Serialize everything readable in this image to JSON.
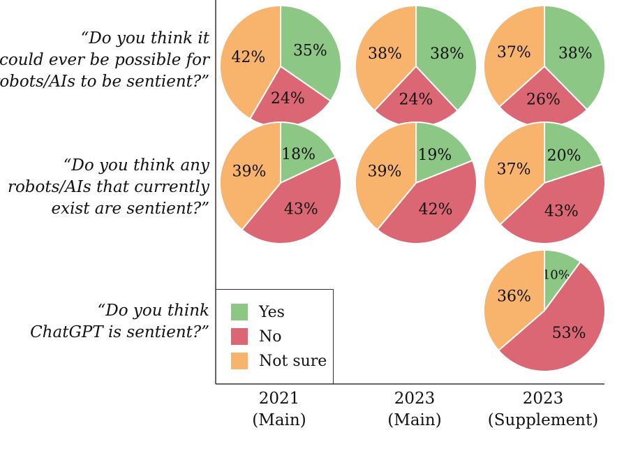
{
  "questions": [
    {
      "lines": [
        "“Do you think it",
        "could ever be possible for",
        "robots/AIs to be sentient?”"
      ]
    },
    {
      "lines": [
        "“Do you think any",
        "robots/AIs that currently",
        "exist are sentient?”"
      ]
    },
    {
      "lines": [
        "“Do you think",
        "ChatGPT is sentient?”"
      ]
    }
  ],
  "columns": [
    {
      "year": "2021",
      "sub": "(Main)"
    },
    {
      "year": "2023",
      "sub": "(Main)"
    },
    {
      "year": "2023",
      "sub": "(Supplement)"
    }
  ],
  "legend": [
    {
      "label": "Yes",
      "color": "#8cc786"
    },
    {
      "label": "No",
      "color": "#db6774"
    },
    {
      "label": "Not sure",
      "color": "#f8b36c"
    }
  ],
  "chart_data": {
    "type": "pie",
    "series_names": [
      "Yes",
      "No",
      "Not sure"
    ],
    "colors": {
      "Yes": "#8cc786",
      "No": "#db6774",
      "Not sure": "#f8b36c"
    },
    "pies": [
      {
        "row": 0,
        "col": 0,
        "values": {
          "Yes": 35,
          "No": 24,
          "Not sure": 42
        },
        "labels": [
          "35%",
          "24%",
          "42%"
        ]
      },
      {
        "row": 0,
        "col": 1,
        "values": {
          "Yes": 38,
          "No": 24,
          "Not sure": 38
        },
        "labels": [
          "38%",
          "24%",
          "38%"
        ]
      },
      {
        "row": 0,
        "col": 2,
        "values": {
          "Yes": 38,
          "No": 26,
          "Not sure": 37
        },
        "labels": [
          "38%",
          "26%",
          "37%"
        ]
      },
      {
        "row": 1,
        "col": 0,
        "values": {
          "Yes": 18,
          "No": 43,
          "Not sure": 39
        },
        "labels": [
          "18%",
          "43%",
          "39%"
        ]
      },
      {
        "row": 1,
        "col": 1,
        "values": {
          "Yes": 19,
          "No": 42,
          "Not sure": 39
        },
        "labels": [
          "19%",
          "42%",
          "39%"
        ]
      },
      {
        "row": 1,
        "col": 2,
        "values": {
          "Yes": 20,
          "No": 43,
          "Not sure": 37
        },
        "labels": [
          "20%",
          "43%",
          "37%"
        ]
      },
      {
        "row": 2,
        "col": 2,
        "values": {
          "Yes": 10,
          "No": 53,
          "Not sure": 36
        },
        "labels": [
          "10%",
          "53%",
          "36%"
        ]
      }
    ]
  }
}
